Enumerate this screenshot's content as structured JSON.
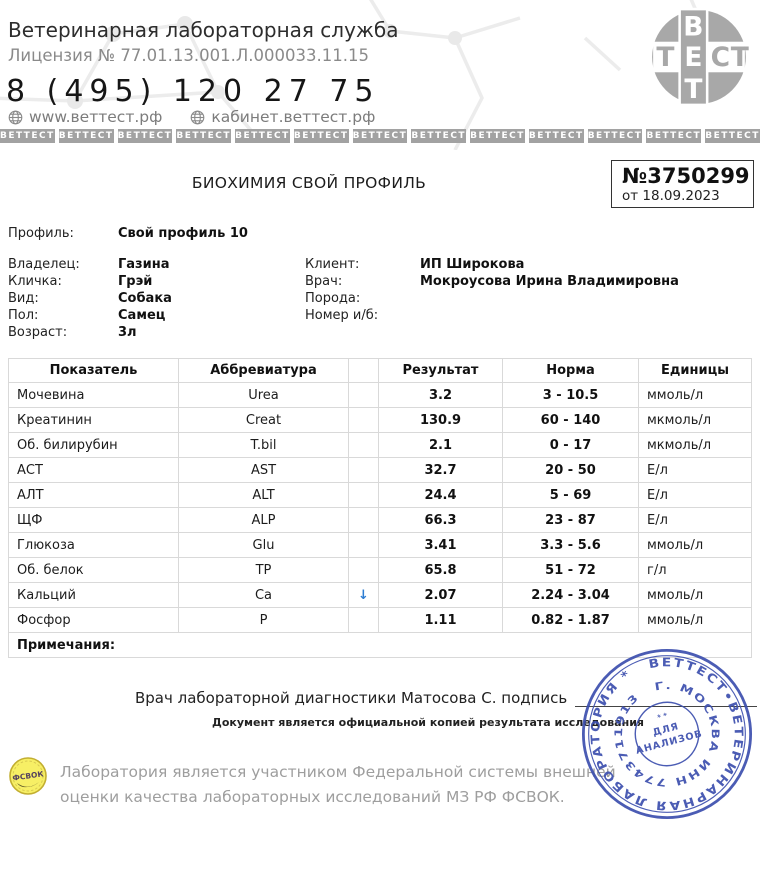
{
  "header": {
    "org_name": "Ветеринарная лабораторная служба",
    "license": "Лицензия № 77.01.13.001.Л.000033.11.15",
    "phone": "8 (495) 120 27 75",
    "site_main": "www.веттест.рф",
    "site_cabinet": "кабинет.веттест.рф",
    "strip": {
      "label": "ВЕТТЕСТ",
      "count": 13
    },
    "logo": {
      "vertical_word": "ВЕТ",
      "horizontal_word": "ТЕСТ"
    }
  },
  "report": {
    "title": "БИОХИМИЯ СВОЙ ПРОФИЛЬ",
    "number": "№3750299",
    "date": "от 18.09.2023"
  },
  "profile": {
    "profile_label": "Профиль:",
    "profile_value": "Свой профиль 10",
    "left": [
      {
        "label": "Владелец:",
        "value": "Газина"
      },
      {
        "label": "Кличка:",
        "value": "Грэй"
      },
      {
        "label": "Вид:",
        "value": "Собака"
      },
      {
        "label": "Пол:",
        "value": "Самец"
      },
      {
        "label": "Возраст:",
        "value": "3л"
      }
    ],
    "right": [
      {
        "label": "Клиент:",
        "value": "ИП Широкова"
      },
      {
        "label": "Врач:",
        "value": "Мокроусова Ирина Владимировна"
      },
      {
        "label": "Порода:",
        "value": ""
      },
      {
        "label": "Номер и/б:",
        "value": ""
      }
    ]
  },
  "table": {
    "headers": [
      "Показатель",
      "Аббревиатура",
      "",
      "Результат",
      "Норма",
      "Единицы"
    ],
    "low_arrow": "↓",
    "low_color": "#2d7dd2",
    "rows": [
      {
        "name": "Мочевина",
        "abbr": "Urea",
        "flag": "",
        "result": "3.2",
        "norm": "3 - 10.5",
        "units": "ммоль/л"
      },
      {
        "name": "Креатинин",
        "abbr": "Creat",
        "flag": "",
        "result": "130.9",
        "norm": "60 - 140",
        "units": "мкмоль/л"
      },
      {
        "name": "Об. билирубин",
        "abbr": "T.bil",
        "flag": "",
        "result": "2.1",
        "norm": "0 - 17",
        "units": "мкмоль/л"
      },
      {
        "name": "АСТ",
        "abbr": "AST",
        "flag": "",
        "result": "32.7",
        "norm": "20 - 50",
        "units": "Е/л"
      },
      {
        "name": "АЛТ",
        "abbr": "ALT",
        "flag": "",
        "result": "24.4",
        "norm": "5 - 69",
        "units": "Е/л"
      },
      {
        "name": "ЩФ",
        "abbr": "ALP",
        "flag": "",
        "result": "66.3",
        "norm": "23 - 87",
        "units": "Е/л"
      },
      {
        "name": "Глюкоза",
        "abbr": "Glu",
        "flag": "",
        "result": "3.41",
        "norm": "3.3 - 5.6",
        "units": "ммоль/л"
      },
      {
        "name": "Об. белок",
        "abbr": "TP",
        "flag": "",
        "result": "65.8",
        "norm": "51 - 72",
        "units": "г/л"
      },
      {
        "name": "Кальций",
        "abbr": "Ca",
        "flag": "low",
        "result": "2.07",
        "norm": "2.24 - 3.04",
        "units": "ммоль/л"
      },
      {
        "name": "Фосфор",
        "abbr": "P",
        "flag": "",
        "result": "1.11",
        "norm": "0.82 - 1.87",
        "units": "ммоль/л"
      }
    ],
    "notes_label": "Примечания:"
  },
  "signature": {
    "line_text": "Врач лабораторной диагностики Матосова С. подпись",
    "copy_note": "Документ является официальной копией результата исследования"
  },
  "stamp": {
    "outer_text": "ВЕТТЕСТ•ВЕТЕРИНАРНАЯ  ЛАБОРАТОРИЯ  *",
    "inner_text": "Г. МОСКВА    ИНН  7743711913",
    "center_line1": "ДЛЯ",
    "center_line2": "АНАЛИЗОВ",
    "color": "#3c4fae"
  },
  "footer": {
    "badge_text": "ФСВОК",
    "text_line1": "Лаборатория является участником Федеральной системы внешней",
    "text_line2": "оценки качества лабораторных исследований МЗ РФ ФСВОК."
  }
}
